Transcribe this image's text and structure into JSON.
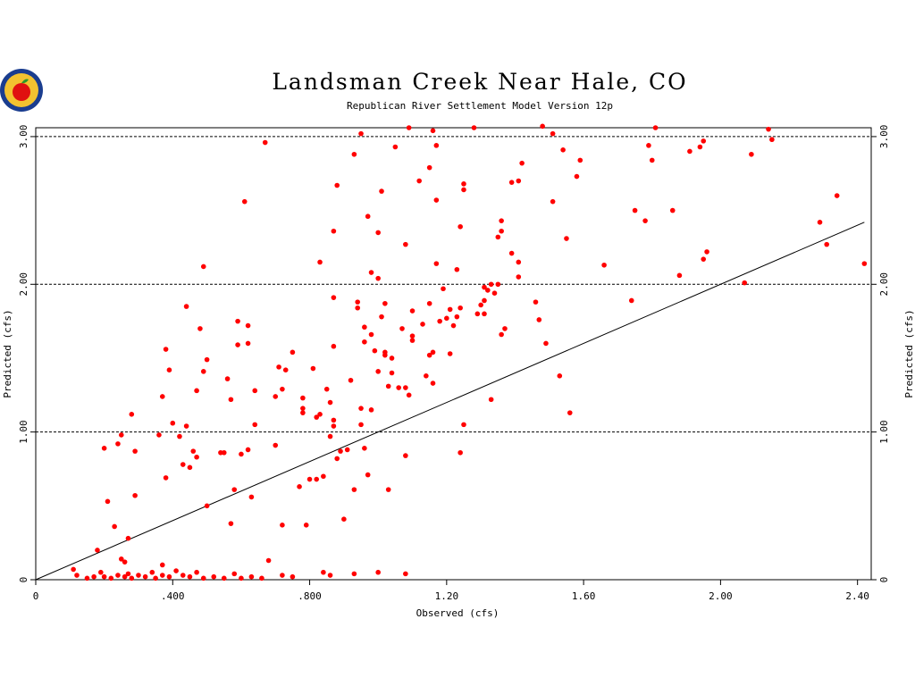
{
  "chart_data": {
    "type": "scatter",
    "title": "Landsman Creek Near Hale, CO",
    "subtitle": "Republican River Settlement Model Version 12p",
    "xlabel": "Observed (cfs)",
    "ylabel": "Predicted (cfs)",
    "xlim": [
      0,
      2.44
    ],
    "ylim": [
      0,
      3.06
    ],
    "x_ticks": [
      0,
      0.4,
      0.8,
      1.2,
      1.6,
      2.0,
      2.4
    ],
    "x_tick_labels": [
      "0",
      ".400",
      ".800",
      "1.20",
      "1.60",
      "2.00",
      "2.40"
    ],
    "y_ticks": [
      0,
      1,
      2,
      3
    ],
    "y_tick_labels": [
      "0",
      "1.00",
      "2.00",
      "3.00"
    ],
    "gridlines_y": [
      1,
      2,
      3
    ],
    "marker_color": "#ff0000",
    "line_color": "#000000",
    "reference_line": {
      "x": [
        0,
        2.42
      ],
      "y": [
        0,
        2.42
      ]
    },
    "points": [
      [
        0.11,
        0.07
      ],
      [
        0.12,
        0.03
      ],
      [
        0.15,
        0.01
      ],
      [
        0.17,
        0.02
      ],
      [
        0.19,
        0.05
      ],
      [
        0.2,
        0.02
      ],
      [
        0.22,
        0.01
      ],
      [
        0.24,
        0.03
      ],
      [
        0.26,
        0.02
      ],
      [
        0.27,
        0.04
      ],
      [
        0.28,
        0.01
      ],
      [
        0.3,
        0.03
      ],
      [
        0.32,
        0.02
      ],
      [
        0.34,
        0.05
      ],
      [
        0.35,
        0.01
      ],
      [
        0.37,
        0.03
      ],
      [
        0.39,
        0.02
      ],
      [
        0.41,
        0.06
      ],
      [
        0.43,
        0.03
      ],
      [
        0.45,
        0.02
      ],
      [
        0.47,
        0.05
      ],
      [
        0.49,
        0.01
      ],
      [
        0.52,
        0.02
      ],
      [
        0.55,
        0.01
      ],
      [
        0.58,
        0.04
      ],
      [
        0.6,
        0.01
      ],
      [
        0.63,
        0.02
      ],
      [
        0.66,
        0.01
      ],
      [
        0.68,
        0.13
      ],
      [
        0.72,
        0.03
      ],
      [
        0.75,
        0.02
      ],
      [
        0.84,
        0.05
      ],
      [
        0.86,
        0.03
      ],
      [
        0.93,
        0.04
      ],
      [
        1.0,
        0.05
      ],
      [
        1.08,
        0.04
      ],
      [
        0.18,
        0.2
      ],
      [
        0.21,
        0.53
      ],
      [
        0.23,
        0.36
      ],
      [
        0.24,
        0.92
      ],
      [
        0.25,
        0.98
      ],
      [
        0.2,
        0.89
      ],
      [
        0.27,
        0.28
      ],
      [
        0.28,
        1.12
      ],
      [
        0.29,
        0.57
      ],
      [
        0.29,
        0.87
      ],
      [
        0.25,
        0.14
      ],
      [
        0.26,
        0.12
      ],
      [
        0.37,
        0.1
      ],
      [
        0.36,
        0.98
      ],
      [
        0.37,
        1.24
      ],
      [
        0.38,
        1.56
      ],
      [
        0.38,
        0.69
      ],
      [
        0.39,
        1.42
      ],
      [
        0.4,
        1.06
      ],
      [
        0.42,
        0.97
      ],
      [
        0.43,
        0.78
      ],
      [
        0.44,
        1.04
      ],
      [
        0.44,
        1.85
      ],
      [
        0.45,
        0.76
      ],
      [
        0.46,
        0.87
      ],
      [
        0.47,
        0.83
      ],
      [
        0.47,
        1.28
      ],
      [
        0.48,
        1.7
      ],
      [
        0.49,
        2.12
      ],
      [
        0.49,
        1.41
      ],
      [
        0.5,
        1.49
      ],
      [
        0.5,
        0.5
      ],
      [
        0.54,
        0.86
      ],
      [
        0.55,
        0.86
      ],
      [
        0.56,
        1.36
      ],
      [
        0.57,
        1.22
      ],
      [
        0.57,
        0.38
      ],
      [
        0.58,
        0.61
      ],
      [
        0.59,
        1.59
      ],
      [
        0.59,
        1.75
      ],
      [
        0.6,
        0.85
      ],
      [
        0.61,
        2.56
      ],
      [
        0.62,
        1.72
      ],
      [
        0.62,
        1.6
      ],
      [
        0.62,
        0.88
      ],
      [
        0.63,
        0.56
      ],
      [
        0.64,
        1.28
      ],
      [
        0.64,
        1.05
      ],
      [
        0.67,
        2.96
      ],
      [
        0.7,
        1.24
      ],
      [
        0.7,
        0.91
      ],
      [
        0.71,
        1.44
      ],
      [
        0.72,
        1.29
      ],
      [
        0.72,
        0.37
      ],
      [
        0.73,
        1.42
      ],
      [
        0.75,
        1.54
      ],
      [
        0.77,
        0.63
      ],
      [
        0.78,
        1.16
      ],
      [
        0.78,
        1.23
      ],
      [
        0.78,
        1.13
      ],
      [
        0.79,
        0.37
      ],
      [
        0.8,
        0.68
      ],
      [
        0.81,
        1.43
      ],
      [
        0.82,
        1.1
      ],
      [
        0.82,
        0.68
      ],
      [
        0.83,
        1.12
      ],
      [
        0.83,
        2.15
      ],
      [
        0.84,
        0.7
      ],
      [
        0.85,
        1.29
      ],
      [
        0.86,
        0.97
      ],
      [
        0.86,
        1.2
      ],
      [
        0.87,
        1.04
      ],
      [
        0.87,
        1.08
      ],
      [
        0.87,
        1.58
      ],
      [
        0.87,
        1.91
      ],
      [
        0.87,
        2.36
      ],
      [
        0.88,
        2.67
      ],
      [
        0.88,
        0.82
      ],
      [
        0.89,
        0.87
      ],
      [
        0.9,
        0.41
      ],
      [
        0.91,
        0.88
      ],
      [
        0.92,
        1.35
      ],
      [
        0.93,
        0.61
      ],
      [
        0.93,
        2.88
      ],
      [
        0.94,
        1.84
      ],
      [
        0.94,
        1.88
      ],
      [
        0.95,
        3.02
      ],
      [
        0.95,
        1.16
      ],
      [
        0.95,
        1.05
      ],
      [
        0.96,
        0.89
      ],
      [
        0.96,
        1.71
      ],
      [
        0.96,
        1.61
      ],
      [
        0.97,
        2.46
      ],
      [
        0.97,
        0.71
      ],
      [
        0.98,
        1.15
      ],
      [
        0.98,
        1.66
      ],
      [
        0.98,
        2.08
      ],
      [
        0.99,
        1.55
      ],
      [
        1.0,
        2.04
      ],
      [
        1.0,
        2.35
      ],
      [
        1.0,
        1.41
      ],
      [
        1.01,
        2.63
      ],
      [
        1.01,
        1.78
      ],
      [
        1.02,
        1.54
      ],
      [
        1.02,
        1.87
      ],
      [
        1.02,
        1.52
      ],
      [
        1.03,
        1.31
      ],
      [
        1.03,
        0.61
      ],
      [
        1.04,
        1.5
      ],
      [
        1.04,
        1.4
      ],
      [
        1.05,
        2.93
      ],
      [
        1.06,
        1.3
      ],
      [
        1.07,
        1.7
      ],
      [
        1.08,
        1.3
      ],
      [
        1.08,
        0.84
      ],
      [
        1.08,
        2.27
      ],
      [
        1.09,
        3.06
      ],
      [
        1.09,
        1.25
      ],
      [
        1.1,
        1.62
      ],
      [
        1.1,
        1.82
      ],
      [
        1.1,
        1.65
      ],
      [
        1.12,
        2.7
      ],
      [
        1.13,
        1.73
      ],
      [
        1.14,
        1.38
      ],
      [
        1.15,
        2.79
      ],
      [
        1.15,
        1.87
      ],
      [
        1.15,
        1.52
      ],
      [
        1.16,
        3.04
      ],
      [
        1.16,
        1.33
      ],
      [
        1.16,
        1.54
      ],
      [
        1.17,
        2.94
      ],
      [
        1.17,
        2.57
      ],
      [
        1.17,
        2.14
      ],
      [
        1.18,
        1.75
      ],
      [
        1.19,
        1.97
      ],
      [
        1.2,
        1.77
      ],
      [
        1.21,
        1.83
      ],
      [
        1.21,
        1.53
      ],
      [
        1.22,
        1.72
      ],
      [
        1.23,
        2.1
      ],
      [
        1.23,
        1.78
      ],
      [
        1.24,
        1.84
      ],
      [
        1.24,
        2.39
      ],
      [
        1.24,
        0.86
      ],
      [
        1.25,
        2.64
      ],
      [
        1.25,
        2.68
      ],
      [
        1.25,
        1.05
      ],
      [
        1.28,
        3.06
      ],
      [
        1.29,
        1.8
      ],
      [
        1.3,
        1.86
      ],
      [
        1.31,
        1.98
      ],
      [
        1.31,
        1.89
      ],
      [
        1.31,
        1.8
      ],
      [
        1.32,
        1.96
      ],
      [
        1.33,
        2.0
      ],
      [
        1.33,
        1.22
      ],
      [
        1.34,
        1.94
      ],
      [
        1.35,
        2.32
      ],
      [
        1.35,
        2.0
      ],
      [
        1.36,
        1.66
      ],
      [
        1.36,
        2.36
      ],
      [
        1.36,
        2.43
      ],
      [
        1.37,
        1.7
      ],
      [
        1.39,
        2.69
      ],
      [
        1.39,
        2.21
      ],
      [
        1.41,
        2.7
      ],
      [
        1.41,
        2.15
      ],
      [
        1.41,
        2.05
      ],
      [
        1.42,
        2.82
      ],
      [
        1.46,
        1.88
      ],
      [
        1.47,
        1.76
      ],
      [
        1.48,
        3.07
      ],
      [
        1.49,
        1.6
      ],
      [
        1.51,
        3.02
      ],
      [
        1.51,
        2.56
      ],
      [
        1.53,
        1.38
      ],
      [
        1.54,
        2.91
      ],
      [
        1.55,
        2.31
      ],
      [
        1.56,
        1.13
      ],
      [
        1.58,
        2.73
      ],
      [
        1.59,
        2.84
      ],
      [
        1.66,
        2.13
      ],
      [
        1.74,
        1.89
      ],
      [
        1.75,
        2.5
      ],
      [
        1.78,
        2.43
      ],
      [
        1.79,
        2.94
      ],
      [
        1.8,
        2.84
      ],
      [
        1.81,
        3.06
      ],
      [
        1.86,
        2.5
      ],
      [
        1.88,
        2.06
      ],
      [
        1.91,
        2.9
      ],
      [
        1.94,
        2.93
      ],
      [
        1.95,
        2.17
      ],
      [
        1.95,
        2.97
      ],
      [
        1.96,
        2.22
      ],
      [
        2.07,
        2.01
      ],
      [
        2.09,
        2.88
      ],
      [
        2.14,
        3.05
      ],
      [
        2.15,
        2.98
      ],
      [
        2.29,
        2.42
      ],
      [
        2.31,
        2.27
      ],
      [
        2.34,
        2.6
      ],
      [
        2.42,
        2.14
      ]
    ]
  }
}
